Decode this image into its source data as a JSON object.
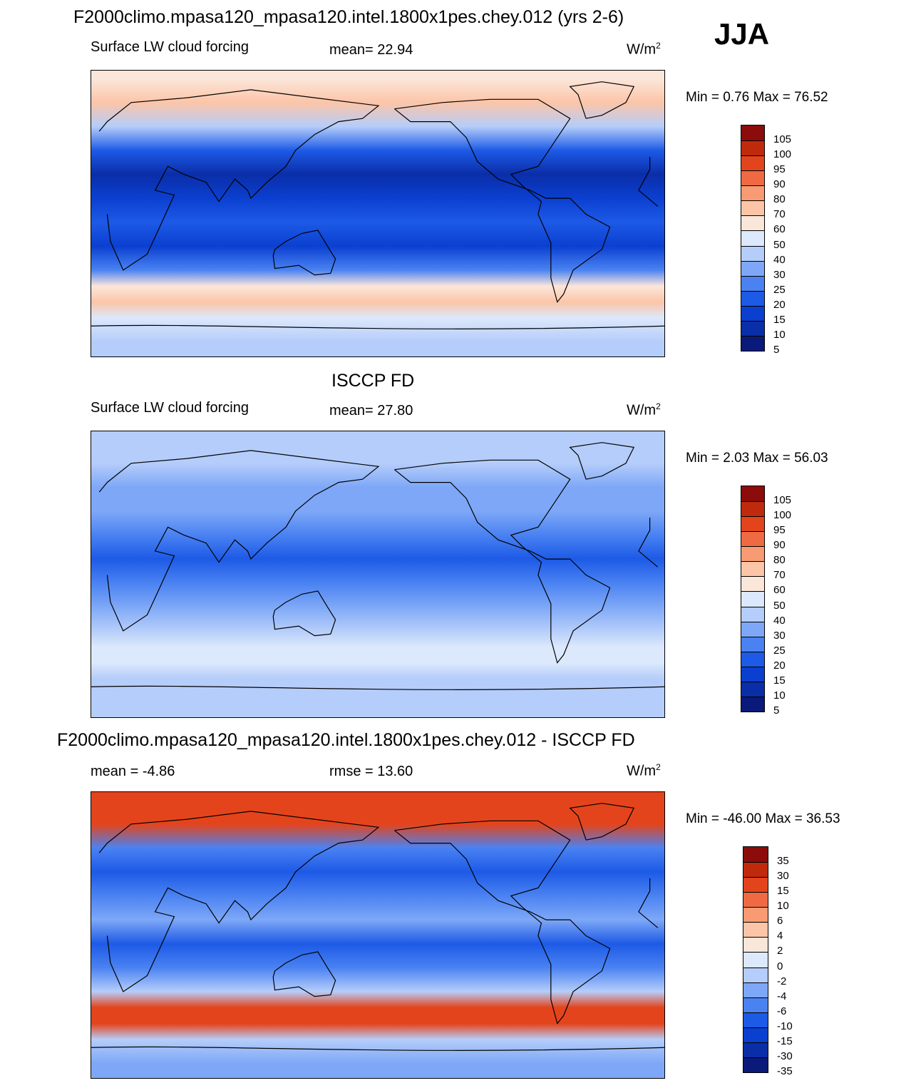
{
  "season": "JJA",
  "colors": {
    "ramp": [
      "#0a1a7a",
      "#0a2ea8",
      "#0b3fd0",
      "#1d5ae6",
      "#4a82f2",
      "#7ea8f7",
      "#b5cdfa",
      "#dce8fb",
      "#fbe6da",
      "#fcc5a8",
      "#f89a72",
      "#ef6a42",
      "#e4441c",
      "#c02a0c",
      "#8c0b0b"
    ],
    "land_outline": "#000000"
  },
  "panels": [
    {
      "id": "model",
      "title": "F2000climo.mpasa120_mpasa120.intel.1800x1pes.chey.012 (yrs 2-6)",
      "variable": "Surface LW cloud forcing",
      "stat_text": "mean=  22.94",
      "units": "W/m",
      "units_sup": "2",
      "minmax": "Min =   0.76 Max =  76.52",
      "colorbar_labels": [
        "105",
        "100",
        "95",
        "90",
        "80",
        "70",
        "60",
        "50",
        "40",
        "30",
        "25",
        "20",
        "15",
        "10",
        "5"
      ]
    },
    {
      "id": "obs",
      "title": "ISCCP FD",
      "variable": "Surface LW cloud forcing",
      "stat_text": "mean=  27.80",
      "units": "W/m",
      "units_sup": "2",
      "minmax": "Min =   2.03 Max =  56.03",
      "colorbar_labels": [
        "105",
        "100",
        "95",
        "90",
        "80",
        "70",
        "60",
        "50",
        "40",
        "30",
        "25",
        "20",
        "15",
        "10",
        "5"
      ]
    },
    {
      "id": "diff",
      "title": "F2000climo.mpasa120_mpasa120.intel.1800x1pes.chey.012 - ISCCP FD",
      "variable": "mean =  -4.86",
      "stat_text": "rmse =  13.60",
      "units": "W/m",
      "units_sup": "2",
      "minmax": "Min = -46.00 Max =  36.53",
      "colorbar_labels": [
        "35",
        "30",
        "15",
        "10",
        "6",
        "4",
        "2",
        "0",
        "-2",
        "-4",
        "-6",
        "-10",
        "-15",
        "-30",
        "-35"
      ]
    }
  ],
  "chart_data": [
    {
      "type": "heatmap",
      "title": "F2000climo.mpasa120_mpasa120.intel.1800x1pes.chey.012 (yrs 2-6)",
      "subtitle": "Surface LW cloud forcing",
      "season": "JJA",
      "units": "W/m2",
      "mean": 22.94,
      "min": 0.76,
      "max": 76.52,
      "levels": [
        5,
        10,
        15,
        20,
        25,
        30,
        40,
        50,
        60,
        70,
        80,
        90,
        95,
        100,
        105
      ],
      "zonal_band_index_by_latitude": {
        "lat": [
          85,
          70,
          55,
          40,
          25,
          10,
          -5,
          -20,
          -35,
          -45,
          -55,
          -65,
          -80
        ],
        "level_index": [
          8,
          9,
          6,
          3,
          1,
          2,
          3,
          2,
          4,
          8,
          9,
          7,
          6
        ]
      }
    },
    {
      "type": "heatmap",
      "title": "ISCCP FD",
      "subtitle": "Surface LW cloud forcing",
      "season": "JJA",
      "units": "W/m2",
      "mean": 27.8,
      "min": 2.03,
      "max": 56.03,
      "levels": [
        5,
        10,
        15,
        20,
        25,
        30,
        40,
        50,
        60,
        70,
        80,
        90,
        95,
        100,
        105
      ],
      "zonal_band_index_by_latitude": {
        "lat": [
          85,
          70,
          55,
          40,
          25,
          10,
          -5,
          -20,
          -35,
          -45,
          -55,
          -65,
          -80
        ],
        "level_index": [
          6,
          6,
          5,
          5,
          4,
          3,
          4,
          5,
          6,
          7,
          7,
          6,
          6
        ]
      }
    },
    {
      "type": "heatmap",
      "title": "F2000climo.mpasa120_mpasa120.intel.1800x1pes.chey.012 - ISCCP FD",
      "season": "JJA",
      "units": "W/m2",
      "mean": -4.86,
      "rmse": 13.6,
      "min": -46.0,
      "max": 36.53,
      "levels": [
        -35,
        -30,
        -15,
        -10,
        -6,
        -4,
        -2,
        0,
        2,
        4,
        6,
        10,
        15,
        30,
        35
      ],
      "zonal_band_index_by_latitude": {
        "lat": [
          85,
          70,
          55,
          40,
          25,
          10,
          -5,
          -20,
          -35,
          -45,
          -55,
          -65,
          -80
        ],
        "level_index": [
          12,
          12,
          4,
          3,
          4,
          5,
          3,
          4,
          6,
          12,
          12,
          6,
          5
        ]
      }
    }
  ]
}
